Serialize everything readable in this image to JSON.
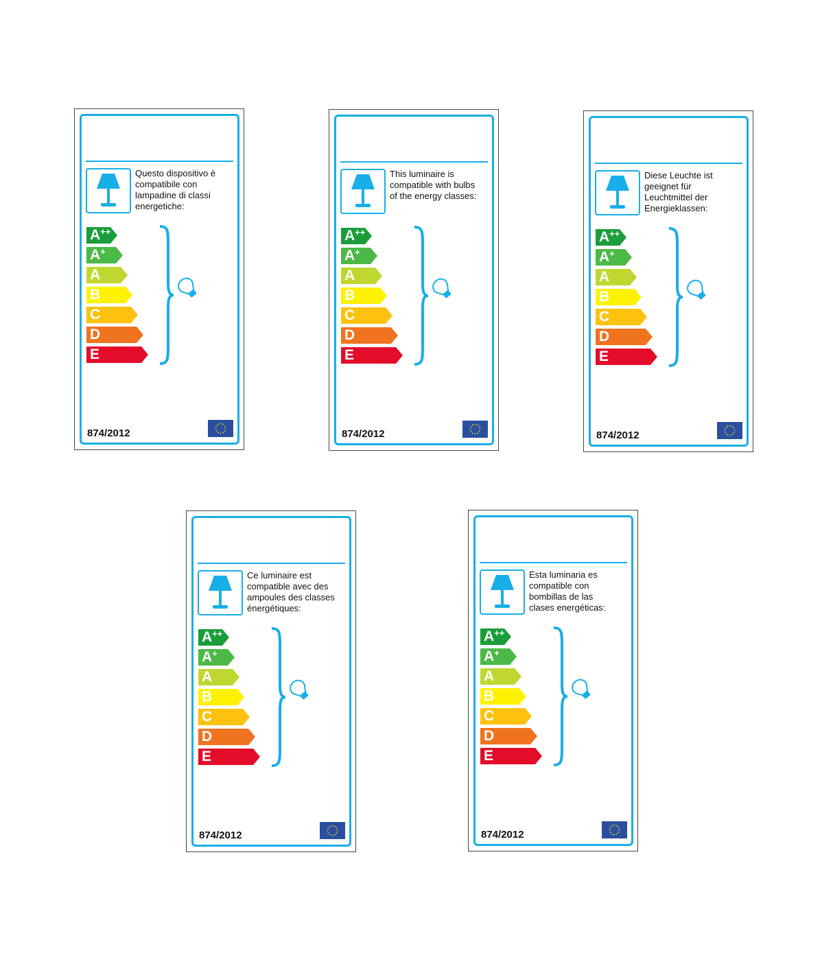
{
  "regulation": "874/2012",
  "colors": {
    "border": "#18aee8",
    "A++": "#1a9d3a",
    "A+": "#4cb947",
    "A": "#bfd730",
    "B": "#fff200",
    "C": "#fdc20f",
    "D": "#f0731f",
    "E": "#e30d2a",
    "eu_flag": "#2a4fa0",
    "eu_stars": "#ffdd00"
  },
  "classes": [
    {
      "letter": "A",
      "sup": "++"
    },
    {
      "letter": "A",
      "sup": "+"
    },
    {
      "letter": "A",
      "sup": ""
    },
    {
      "letter": "B",
      "sup": ""
    },
    {
      "letter": "C",
      "sup": ""
    },
    {
      "letter": "D",
      "sup": ""
    },
    {
      "letter": "E",
      "sup": ""
    }
  ],
  "icons": [
    "lamp-icon",
    "bulb-icon",
    "eu-flag-icon",
    "brace-icon"
  ],
  "labels": [
    {
      "language": "it",
      "text": "Questo dispositivo è compatibile con lampadine di classi energetiche:"
    },
    {
      "language": "en",
      "text": "This luminaire is compatible with bulbs of the energy classes:"
    },
    {
      "language": "de",
      "text": "Diese Leuchte ist geeignet für Leuchtmittel der Energieklassen:"
    },
    {
      "language": "fr",
      "text": "Ce luminaire est compatible avec des ampoules des classes énergétiques:"
    },
    {
      "language": "es",
      "text": "Esta luminaria es compatible con bombillas de las clases energéticas:"
    }
  ]
}
